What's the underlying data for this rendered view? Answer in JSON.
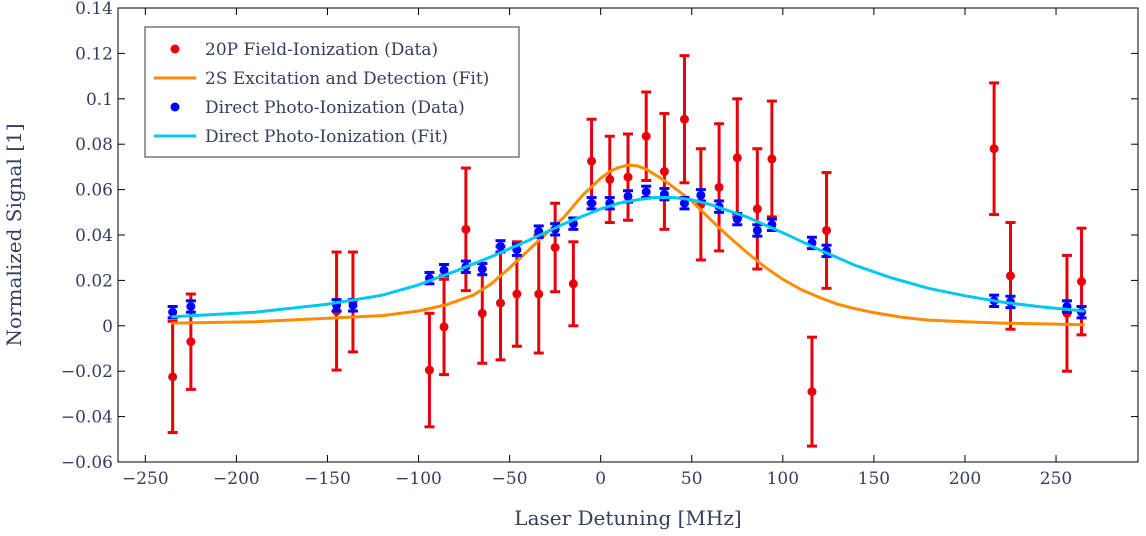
{
  "chart_data": {
    "type": "scatter",
    "title": "",
    "xlabel": "Laser Detuning [MHz]",
    "ylabel": "Normalized Signal [1]",
    "xlim": [
      -265,
      295
    ],
    "ylim": [
      -0.06,
      0.14
    ],
    "xticks": [
      -250,
      -200,
      -150,
      -100,
      -50,
      0,
      50,
      100,
      150,
      200,
      250
    ],
    "xtick_labels": [
      "−250",
      "−200",
      "−150",
      "−100",
      "−50",
      "0",
      "50",
      "100",
      "150",
      "200",
      "250"
    ],
    "yticks": [
      -0.06,
      -0.04,
      -0.02,
      0,
      0.02,
      0.04,
      0.06,
      0.08,
      0.1,
      0.12,
      0.14
    ],
    "ytick_labels": [
      "−0.06",
      "−0.04",
      "−0.02",
      "0",
      "0.02",
      "0.04",
      "0.06",
      "0.08",
      "0.1",
      "0.12",
      "0.14"
    ],
    "grid": false,
    "legend_position": "top-left",
    "series": [
      {
        "name": "20P Field-Ionization (Data)",
        "kind": "points",
        "color": "#e8000b",
        "x": [
          -235,
          -225,
          -145,
          -136,
          -94,
          -86,
          -74,
          -65,
          -55,
          -46,
          -34,
          -25,
          -15,
          -5,
          5,
          15,
          25,
          35,
          46,
          55,
          65,
          75,
          86,
          94,
          116,
          124,
          216,
          225,
          256,
          264
        ],
        "y": [
          -0.0225,
          -0.007,
          0.0065,
          0.0105,
          -0.0195,
          -0.0005,
          0.0425,
          0.0055,
          0.01,
          0.014,
          0.014,
          0.0345,
          0.0185,
          0.0725,
          0.0645,
          0.0655,
          0.0835,
          0.068,
          0.091,
          0.0535,
          0.061,
          0.074,
          0.0515,
          0.0735,
          -0.029,
          0.042,
          0.078,
          0.022,
          0.0055,
          0.0195
        ],
        "err": [
          0.0245,
          0.021,
          0.026,
          0.022,
          0.025,
          0.021,
          0.027,
          0.022,
          0.025,
          0.023,
          0.026,
          0.0195,
          0.0185,
          0.0185,
          0.019,
          0.019,
          0.0195,
          0.0255,
          0.028,
          0.0245,
          0.028,
          0.026,
          0.0265,
          0.0255,
          0.024,
          0.0255,
          0.029,
          0.0235,
          0.0255,
          0.0235
        ]
      },
      {
        "name": "2S Excitation and Detection (Fit)",
        "kind": "line",
        "color": "#ff8c00",
        "x": [
          -235,
          -190,
          -150,
          -120,
          -100,
          -85,
          -70,
          -60,
          -50,
          -40,
          -30,
          -20,
          -10,
          0,
          5,
          10,
          15,
          20,
          25,
          30,
          35,
          40,
          45,
          50,
          55,
          60,
          70,
          80,
          90,
          100,
          110,
          120,
          130,
          140,
          150,
          165,
          180,
          200,
          220,
          240,
          265
        ],
        "y": [
          0.0012,
          0.0018,
          0.0033,
          0.0045,
          0.0065,
          0.0092,
          0.0135,
          0.0185,
          0.0255,
          0.033,
          0.0405,
          0.048,
          0.0575,
          0.065,
          0.068,
          0.0698,
          0.0708,
          0.0705,
          0.069,
          0.0665,
          0.064,
          0.061,
          0.058,
          0.055,
          0.051,
          0.047,
          0.0395,
          0.0325,
          0.026,
          0.0205,
          0.016,
          0.0125,
          0.0095,
          0.0075,
          0.0058,
          0.0038,
          0.0025,
          0.0018,
          0.0012,
          0.0009,
          0.0005
        ]
      },
      {
        "name": "Direct Photo-Ionization (Data)",
        "kind": "points",
        "color": "#0000ff",
        "x": [
          -235,
          -225,
          -145,
          -136,
          -94,
          -86,
          -74,
          -65,
          -55,
          -46,
          -34,
          -25,
          -15,
          -5,
          5,
          15,
          25,
          35,
          46,
          55,
          65,
          75,
          86,
          94,
          116,
          124,
          216,
          225,
          256,
          264
        ],
        "y": [
          0.006,
          0.0085,
          0.009,
          0.009,
          0.021,
          0.0245,
          0.026,
          0.025,
          0.035,
          0.0335,
          0.0415,
          0.0425,
          0.045,
          0.054,
          0.054,
          0.057,
          0.059,
          0.058,
          0.054,
          0.0575,
          0.0525,
          0.047,
          0.042,
          0.0445,
          0.0365,
          0.033,
          0.011,
          0.0105,
          0.0085,
          0.006
        ],
        "err": [
          0.0025,
          0.0025,
          0.0025,
          0.0025,
          0.0025,
          0.0025,
          0.0025,
          0.0025,
          0.0025,
          0.0025,
          0.0025,
          0.0025,
          0.0025,
          0.0025,
          0.0025,
          0.0025,
          0.0025,
          0.0025,
          0.0025,
          0.0025,
          0.0025,
          0.0025,
          0.0025,
          0.0025,
          0.0025,
          0.0025,
          0.0025,
          0.0025,
          0.0025,
          0.0025
        ]
      },
      {
        "name": "Direct Photo-Ionization (Fit)",
        "kind": "line",
        "color": "#00c8f0",
        "x": [
          -235,
          -190,
          -150,
          -120,
          -100,
          -80,
          -60,
          -40,
          -20,
          0,
          10,
          20,
          30,
          40,
          50,
          60,
          80,
          100,
          120,
          140,
          160,
          180,
          200,
          220,
          240,
          265
        ],
        "y": [
          0.004,
          0.006,
          0.0095,
          0.0135,
          0.018,
          0.024,
          0.0305,
          0.0375,
          0.045,
          0.0515,
          0.054,
          0.0555,
          0.0565,
          0.0565,
          0.0555,
          0.0535,
          0.048,
          0.041,
          0.0335,
          0.0265,
          0.021,
          0.0165,
          0.0132,
          0.0105,
          0.0085,
          0.0065
        ]
      }
    ]
  }
}
